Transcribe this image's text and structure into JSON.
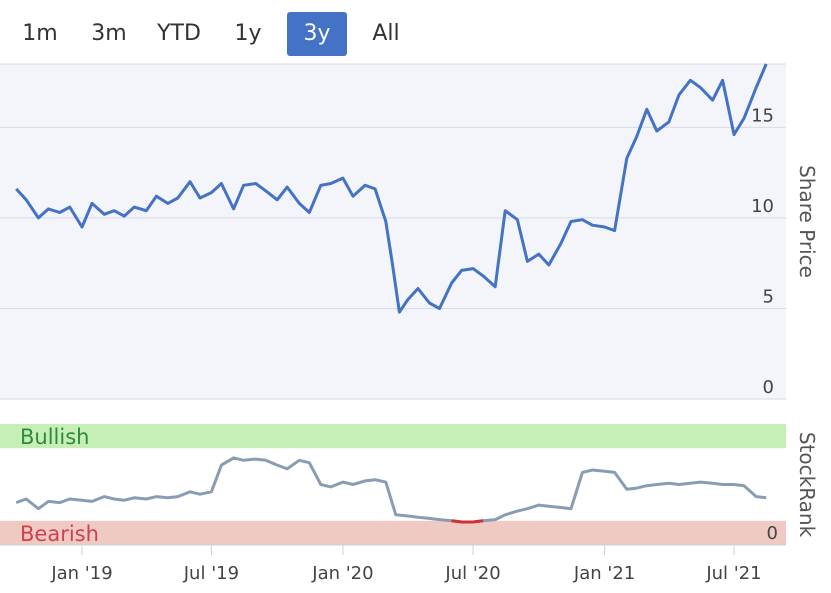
{
  "range_selector": {
    "buttons": [
      {
        "label": "1m",
        "active": false
      },
      {
        "label": "3m",
        "active": false
      },
      {
        "label": "YTD",
        "active": false
      },
      {
        "label": "1y",
        "active": false
      },
      {
        "label": "3y",
        "active": true
      },
      {
        "label": "All",
        "active": false
      }
    ],
    "active_color": "#4472c4"
  },
  "chart_data": [
    {
      "type": "line",
      "ylabel": "Share Price",
      "ylim": [
        0,
        18.5
      ],
      "yticks": [
        "0",
        "5",
        "10",
        "15"
      ],
      "grid": true,
      "line_color": "#4472c4",
      "x": [
        "2018-10-01",
        "2018-10-15",
        "2018-11-01",
        "2018-11-15",
        "2018-12-01",
        "2018-12-15",
        "2019-01-01",
        "2019-01-15",
        "2019-02-01",
        "2019-02-15",
        "2019-03-01",
        "2019-03-15",
        "2019-04-01",
        "2019-04-15",
        "2019-05-01",
        "2019-05-15",
        "2019-06-01",
        "2019-06-15",
        "2019-07-01",
        "2019-07-15",
        "2019-08-01",
        "2019-08-15",
        "2019-09-01",
        "2019-09-15",
        "2019-10-01",
        "2019-10-15",
        "2019-11-01",
        "2019-11-15",
        "2019-12-01",
        "2019-12-15",
        "2020-01-01",
        "2020-01-15",
        "2020-02-01",
        "2020-02-15",
        "2020-03-01",
        "2020-03-10",
        "2020-03-20",
        "2020-04-01",
        "2020-04-15",
        "2020-05-01",
        "2020-05-15",
        "2020-06-01",
        "2020-06-15",
        "2020-07-01",
        "2020-07-15",
        "2020-08-01",
        "2020-08-15",
        "2020-09-01",
        "2020-09-15",
        "2020-10-01",
        "2020-10-15",
        "2020-11-01",
        "2020-11-15",
        "2020-12-01",
        "2020-12-15",
        "2021-01-01",
        "2021-01-15",
        "2021-02-01",
        "2021-02-15",
        "2021-03-01",
        "2021-03-15",
        "2021-04-01",
        "2021-04-15",
        "2021-05-01",
        "2021-05-15",
        "2021-06-01",
        "2021-06-15",
        "2021-07-01",
        "2021-07-15",
        "2021-08-01",
        "2021-08-15"
      ],
      "values": [
        11.6,
        11.0,
        10.0,
        10.5,
        10.3,
        10.6,
        9.5,
        10.8,
        10.2,
        10.4,
        10.1,
        10.6,
        10.4,
        11.2,
        10.8,
        11.1,
        12.0,
        11.1,
        11.4,
        11.9,
        10.5,
        11.8,
        11.9,
        11.5,
        11.0,
        11.7,
        10.8,
        10.3,
        11.8,
        11.9,
        12.2,
        11.2,
        11.8,
        11.6,
        9.8,
        7.5,
        4.8,
        5.5,
        6.1,
        5.3,
        5.0,
        6.4,
        7.1,
        7.2,
        6.8,
        6.2,
        10.4,
        9.9,
        7.6,
        8.0,
        7.4,
        8.6,
        9.8,
        9.9,
        9.6,
        9.5,
        9.3,
        13.3,
        14.5,
        16.0,
        14.8,
        15.3,
        16.8,
        17.6,
        17.2,
        16.5,
        17.6,
        14.6,
        15.5,
        17.2,
        18.5
      ]
    },
    {
      "type": "line",
      "ylabel": "StockRank",
      "ylim": [
        0,
        100
      ],
      "yticks": [
        "0"
      ],
      "bands": [
        {
          "label": "Bullish",
          "from": 80,
          "to": 100,
          "color": "#c6efb8",
          "text_color": "#2f8a3a"
        },
        {
          "label": "Bearish",
          "from": 0,
          "to": 20,
          "color": "#efcac3",
          "text_color": "#d04050"
        }
      ],
      "line_color": "#8a9cb4",
      "bearish_line_color": "#d03030",
      "x": [
        "2018-10-01",
        "2018-10-15",
        "2018-11-01",
        "2018-11-15",
        "2018-12-01",
        "2018-12-15",
        "2019-01-01",
        "2019-01-15",
        "2019-02-01",
        "2019-02-15",
        "2019-03-01",
        "2019-03-15",
        "2019-04-01",
        "2019-04-15",
        "2019-05-01",
        "2019-05-15",
        "2019-06-01",
        "2019-06-15",
        "2019-07-01",
        "2019-07-15",
        "2019-08-01",
        "2019-08-15",
        "2019-09-01",
        "2019-09-15",
        "2019-10-01",
        "2019-10-15",
        "2019-11-01",
        "2019-11-15",
        "2019-12-01",
        "2019-12-15",
        "2020-01-01",
        "2020-01-15",
        "2020-02-01",
        "2020-02-15",
        "2020-03-01",
        "2020-03-15",
        "2020-04-01",
        "2020-04-15",
        "2020-05-01",
        "2020-05-15",
        "2020-06-01",
        "2020-06-15",
        "2020-07-01",
        "2020-07-15",
        "2020-08-01",
        "2020-08-15",
        "2020-09-01",
        "2020-09-15",
        "2020-10-01",
        "2020-10-15",
        "2020-11-01",
        "2020-11-15",
        "2020-12-01",
        "2020-12-15",
        "2021-01-01",
        "2021-01-15",
        "2021-02-01",
        "2021-02-15",
        "2021-03-01",
        "2021-03-15",
        "2021-04-01",
        "2021-04-15",
        "2021-05-01",
        "2021-05-15",
        "2021-06-01",
        "2021-06-15",
        "2021-07-01",
        "2021-07-15",
        "2021-08-01",
        "2021-08-15"
      ],
      "values": [
        35,
        38,
        30,
        36,
        35,
        38,
        37,
        36,
        40,
        38,
        37,
        39,
        38,
        40,
        39,
        40,
        44,
        42,
        44,
        66,
        72,
        70,
        71,
        70,
        66,
        63,
        70,
        68,
        50,
        48,
        52,
        50,
        53,
        54,
        52,
        25,
        24,
        23,
        22,
        21,
        20,
        19,
        19,
        20,
        21,
        25,
        28,
        30,
        33,
        32,
        31,
        30,
        60,
        62,
        61,
        60,
        46,
        47,
        49,
        50,
        51,
        50,
        51,
        52,
        51,
        50,
        50,
        49,
        40,
        39
      ]
    }
  ],
  "x_axis": {
    "ticks": [
      "Jan '19",
      "Jul '19",
      "Jan '20",
      "Jul '20",
      "Jan '21",
      "Jul '21"
    ],
    "tick_dates": [
      "2019-01-01",
      "2019-07-01",
      "2020-01-01",
      "2020-07-01",
      "2021-01-01",
      "2021-07-01"
    ]
  }
}
